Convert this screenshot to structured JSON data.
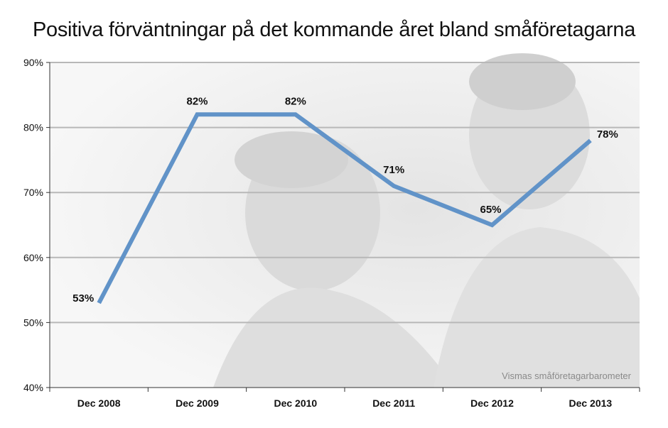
{
  "chart_data": {
    "type": "line",
    "title": "Positiva förväntningar på det kommande året bland småföretagarna",
    "categories": [
      "Dec 2008",
      "Dec 2009",
      "Dec 2010",
      "Dec 2011",
      "Dec 2012",
      "Dec 2013"
    ],
    "series": [
      {
        "values": [
          53,
          82,
          82,
          71,
          65,
          78
        ],
        "labels": [
          "53%",
          "82%",
          "82%",
          "71%",
          "65%",
          "78%"
        ]
      }
    ],
    "yticks": [
      40,
      50,
      60,
      70,
      80,
      90
    ],
    "ytick_labels": [
      "40%",
      "50%",
      "60%",
      "70%",
      "80%",
      "90%"
    ],
    "ylim": [
      40,
      90
    ],
    "grid": true,
    "source": "Vismas småföretagarbarometer",
    "line_color": "#6193c8",
    "grid_color": "#b8b8b8"
  }
}
